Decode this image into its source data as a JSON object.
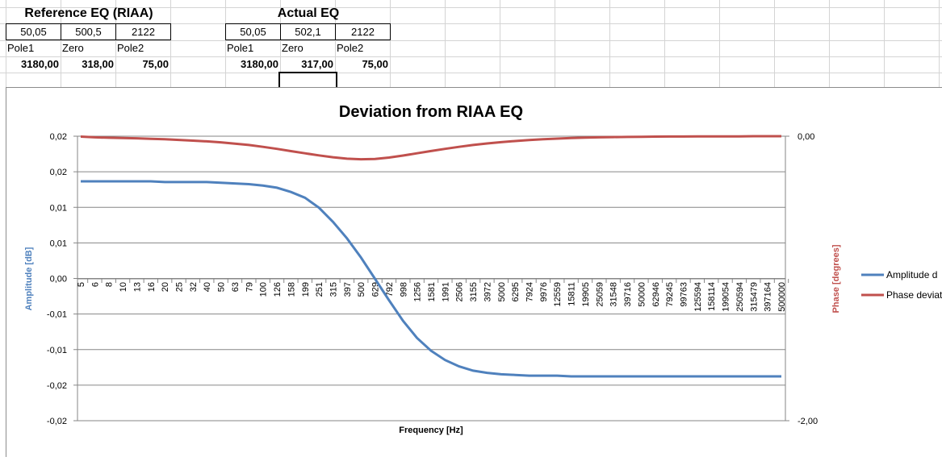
{
  "sheet": {
    "reference": {
      "title": "Reference EQ (RIAA)",
      "values": [
        "50,05",
        "500,5",
        "2122"
      ],
      "labels": [
        "Pole1",
        "Zero",
        "Pole2"
      ],
      "timeconstants": [
        "3180,00",
        "318,00",
        "75,00"
      ]
    },
    "actual": {
      "title": "Actual EQ",
      "values": [
        "50,05",
        "502,1",
        "2122"
      ],
      "labels": [
        "Pole1",
        "Zero",
        "Pole2"
      ],
      "timeconstants": [
        "3180,00",
        "317,00",
        "75,00"
      ]
    }
  },
  "colors": {
    "amplitude": "#4f81bd",
    "phase": "#c0504d",
    "gridline": "#868686"
  },
  "chart_data": {
    "type": "line",
    "title": "Deviation from RIAA EQ",
    "xlabel": "Frequency [Hz]",
    "ylabel": "Amplitude [dB]",
    "y2label": "Phase [degrees]",
    "grid": true,
    "legend_position": "right",
    "y_ticks": [
      "0,02",
      "0,02",
      "0,01",
      "0,01",
      "0,00",
      "-0,01",
      "-0,01",
      "-0,02",
      "-0,02"
    ],
    "y2_ticks": [
      "0,00",
      "-2,00"
    ],
    "y2lim": [
      -2,
      0
    ],
    "categories": [
      "5",
      "6",
      "8",
      "10",
      "13",
      "16",
      "20",
      "25",
      "32",
      "40",
      "50",
      "63",
      "79",
      "100",
      "126",
      "158",
      "199",
      "251",
      "315",
      "397",
      "500",
      "629",
      "792",
      "998",
      "1256",
      "1581",
      "1991",
      "2506",
      "3155",
      "3972",
      "5000",
      "6295",
      "7924",
      "9976",
      "12559",
      "15811",
      "19905",
      "25059",
      "31548",
      "39716",
      "50000",
      "62946",
      "79245",
      "99763",
      "125594",
      "158114",
      "199054",
      "250594",
      "315479",
      "397164",
      "500000"
    ],
    "category_labels": [
      "5",
      "6",
      "8",
      "10",
      "13",
      "16",
      "20",
      "25",
      "32",
      "40",
      "50",
      "63",
      "79",
      "100",
      "126",
      "158",
      "199",
      "251",
      "315",
      "397",
      "500",
      "629",
      "792",
      "998",
      "1256",
      "1581",
      "1991",
      "2506",
      "3155",
      "3972",
      "5000",
      "6295",
      "7924",
      "9976",
      "12559",
      "15811",
      "19905",
      "25059",
      "31548",
      "39716",
      "50000",
      "62946",
      "79245",
      "99763",
      "125594",
      "158114",
      "199054",
      "250594",
      "315479",
      "397164",
      "500000"
    ],
    "series": [
      {
        "name": "Amplitude d",
        "axis": "primary",
        "values": [
          0.0137,
          0.0137,
          0.0137,
          0.0137,
          0.0137,
          0.0137,
          0.0136,
          0.0136,
          0.0136,
          0.0136,
          0.0135,
          0.0134,
          0.0133,
          0.0131,
          0.0128,
          0.0122,
          0.0114,
          0.01,
          0.008,
          0.0057,
          0.003,
          0.0,
          -0.003,
          -0.0059,
          -0.0083,
          -0.0101,
          -0.0114,
          -0.0123,
          -0.0129,
          -0.0132,
          -0.0134,
          -0.0135,
          -0.0136,
          -0.0136,
          -0.0136,
          -0.0137,
          -0.0137,
          -0.0137,
          -0.0137,
          -0.0137,
          -0.0137,
          -0.0137,
          -0.0137,
          -0.0137,
          -0.0137,
          -0.0137,
          -0.0137,
          -0.0137,
          -0.0137,
          -0.0137,
          -0.0137
        ]
      },
      {
        "name": "Phase deviat",
        "axis": "secondary",
        "values": [
          -0.003,
          -0.008,
          -0.011,
          -0.013,
          -0.015,
          -0.018,
          -0.021,
          -0.026,
          -0.031,
          -0.036,
          -0.043,
          -0.052,
          -0.062,
          -0.075,
          -0.089,
          -0.105,
          -0.12,
          -0.135,
          -0.148,
          -0.158,
          -0.162,
          -0.16,
          -0.15,
          -0.136,
          -0.12,
          -0.104,
          -0.089,
          -0.075,
          -0.062,
          -0.051,
          -0.042,
          -0.034,
          -0.027,
          -0.021,
          -0.017,
          -0.013,
          -0.01,
          -0.008,
          -0.006,
          -0.005,
          -0.004,
          -0.003,
          -0.002,
          -0.002,
          -0.001,
          -0.001,
          -0.001,
          -0.001,
          -0.0,
          -0.0,
          -0.0
        ]
      }
    ]
  }
}
